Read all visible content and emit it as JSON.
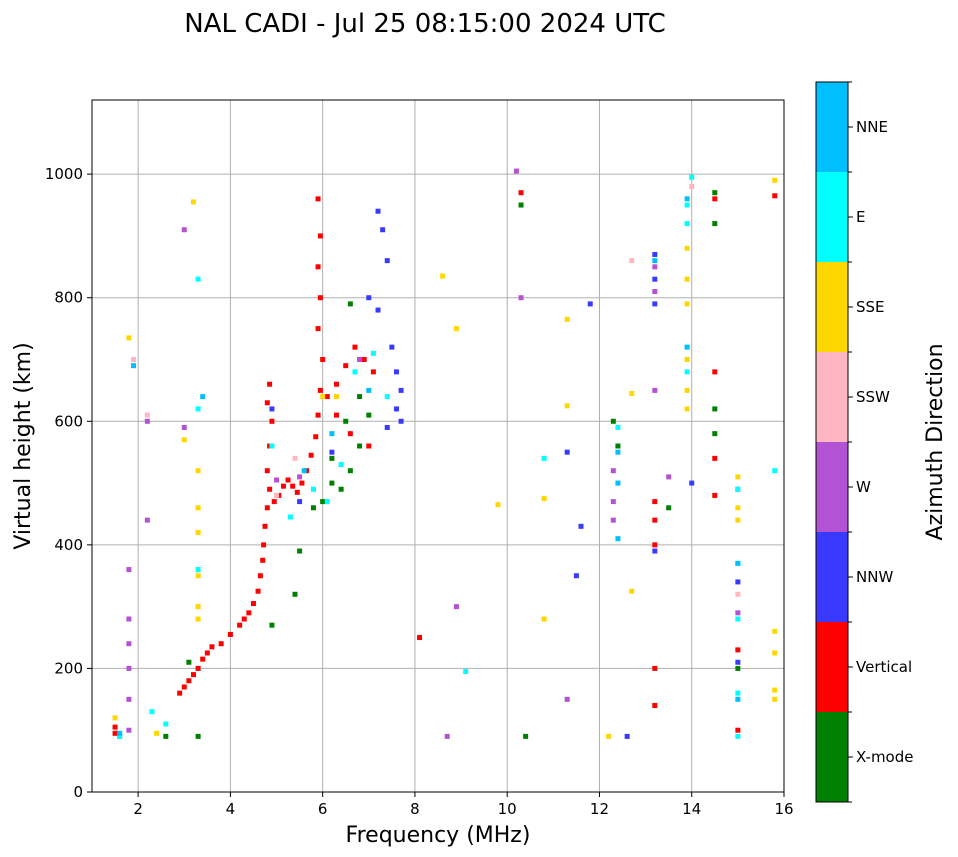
{
  "chart_data": {
    "type": "scatter",
    "title": "NAL CADI - Jul 25 08:15:00 2024 UTC",
    "xlabel": "Frequency (MHz)",
    "ylabel": "Virtual height (km)",
    "xlim": [
      1,
      16
    ],
    "ylim": [
      0,
      1120
    ],
    "xticks": [
      2,
      4,
      6,
      8,
      10,
      12,
      14,
      16
    ],
    "yticks": [
      0,
      200,
      400,
      600,
      800,
      1000
    ],
    "grid": true,
    "colorbar": {
      "label": "Azimuth Direction",
      "categories": [
        {
          "name": "X-mode",
          "color": "#008000"
        },
        {
          "name": "Vertical",
          "color": "#ff0000"
        },
        {
          "name": "NNW",
          "color": "#3a3aff"
        },
        {
          "name": "W",
          "color": "#b452d4"
        },
        {
          "name": "SSW",
          "color": "#ffb6c1"
        },
        {
          "name": "SSE",
          "color": "#ffd700"
        },
        {
          "name": "E",
          "color": "#00ffff"
        },
        {
          "name": "NNE",
          "color": "#00bfff"
        }
      ]
    },
    "series": [
      {
        "name": "Vertical",
        "points": [
          [
            1.5,
            105
          ],
          [
            1.5,
            95
          ],
          [
            2.9,
            160
          ],
          [
            3.0,
            170
          ],
          [
            3.1,
            180
          ],
          [
            3.2,
            190
          ],
          [
            3.3,
            200
          ],
          [
            3.4,
            215
          ],
          [
            3.5,
            225
          ],
          [
            3.6,
            235
          ],
          [
            3.8,
            240
          ],
          [
            4.0,
            255
          ],
          [
            4.2,
            270
          ],
          [
            4.3,
            280
          ],
          [
            4.4,
            290
          ],
          [
            4.5,
            305
          ],
          [
            4.6,
            325
          ],
          [
            4.65,
            350
          ],
          [
            4.7,
            375
          ],
          [
            4.72,
            400
          ],
          [
            4.75,
            430
          ],
          [
            4.8,
            460
          ],
          [
            4.85,
            490
          ],
          [
            4.8,
            520
          ],
          [
            4.85,
            560
          ],
          [
            4.9,
            600
          ],
          [
            4.8,
            630
          ],
          [
            4.85,
            660
          ],
          [
            4.95,
            470
          ],
          [
            5.05,
            480
          ],
          [
            5.15,
            495
          ],
          [
            5.25,
            505
          ],
          [
            5.35,
            495
          ],
          [
            5.45,
            485
          ],
          [
            5.55,
            500
          ],
          [
            5.65,
            520
          ],
          [
            5.75,
            545
          ],
          [
            5.85,
            575
          ],
          [
            5.9,
            610
          ],
          [
            5.95,
            650
          ],
          [
            6.0,
            700
          ],
          [
            5.9,
            750
          ],
          [
            5.95,
            800
          ],
          [
            5.9,
            850
          ],
          [
            5.95,
            900
          ],
          [
            5.9,
            960
          ],
          [
            6.1,
            640
          ],
          [
            6.3,
            660
          ],
          [
            6.5,
            690
          ],
          [
            6.7,
            720
          ],
          [
            6.9,
            700
          ],
          [
            7.1,
            680
          ],
          [
            6.3,
            610
          ],
          [
            6.6,
            580
          ],
          [
            7.0,
            560
          ],
          [
            13.2,
            470
          ],
          [
            13.2,
            440
          ],
          [
            13.2,
            400
          ],
          [
            13.2,
            200
          ],
          [
            13.2,
            140
          ],
          [
            14.5,
            960
          ],
          [
            14.5,
            680
          ],
          [
            14.5,
            540
          ],
          [
            14.5,
            480
          ],
          [
            15.0,
            230
          ],
          [
            15.0,
            100
          ],
          [
            15.8,
            965
          ],
          [
            10.3,
            970
          ],
          [
            8.1,
            250
          ]
        ]
      },
      {
        "name": "X-mode",
        "points": [
          [
            2.6,
            90
          ],
          [
            3.1,
            210
          ],
          [
            3.3,
            90
          ],
          [
            4.9,
            270
          ],
          [
            5.4,
            320
          ],
          [
            5.5,
            390
          ],
          [
            5.8,
            460
          ],
          [
            6.0,
            470
          ],
          [
            6.2,
            500
          ],
          [
            6.4,
            490
          ],
          [
            6.6,
            520
          ],
          [
            6.8,
            560
          ],
          [
            6.2,
            540
          ],
          [
            6.5,
            600
          ],
          [
            6.8,
            640
          ],
          [
            7.0,
            610
          ],
          [
            6.6,
            790
          ],
          [
            10.3,
            950
          ],
          [
            10.4,
            90
          ],
          [
            12.3,
            600
          ],
          [
            12.4,
            560
          ],
          [
            13.5,
            460
          ],
          [
            14.5,
            970
          ],
          [
            14.5,
            920
          ],
          [
            14.5,
            620
          ],
          [
            14.5,
            580
          ],
          [
            15.0,
            200
          ]
        ]
      },
      {
        "name": "NNW",
        "points": [
          [
            1.6,
            90
          ],
          [
            4.9,
            620
          ],
          [
            5.5,
            470
          ],
          [
            6.2,
            550
          ],
          [
            7.0,
            800
          ],
          [
            7.2,
            780
          ],
          [
            7.4,
            860
          ],
          [
            7.3,
            910
          ],
          [
            7.2,
            940
          ],
          [
            7.5,
            720
          ],
          [
            7.6,
            680
          ],
          [
            7.7,
            650
          ],
          [
            7.6,
            620
          ],
          [
            7.4,
            590
          ],
          [
            7.7,
            600
          ],
          [
            11.8,
            790
          ],
          [
            11.6,
            430
          ],
          [
            11.5,
            350
          ],
          [
            11.3,
            550
          ],
          [
            12.6,
            90
          ],
          [
            13.2,
            870
          ],
          [
            13.2,
            830
          ],
          [
            13.2,
            790
          ],
          [
            13.2,
            390
          ],
          [
            14.0,
            500
          ],
          [
            15.0,
            340
          ],
          [
            15.0,
            210
          ]
        ]
      },
      {
        "name": "W",
        "points": [
          [
            1.8,
            100
          ],
          [
            1.8,
            150
          ],
          [
            1.8,
            200
          ],
          [
            1.8,
            240
          ],
          [
            1.8,
            280
          ],
          [
            1.8,
            360
          ],
          [
            2.2,
            440
          ],
          [
            2.2,
            600
          ],
          [
            3.0,
            590
          ],
          [
            3.0,
            910
          ],
          [
            5.0,
            505
          ],
          [
            5.5,
            510
          ],
          [
            6.8,
            700
          ],
          [
            10.3,
            800
          ],
          [
            10.2,
            1005
          ],
          [
            8.9,
            300
          ],
          [
            8.7,
            90
          ],
          [
            11.3,
            150
          ],
          [
            12.3,
            520
          ],
          [
            12.3,
            470
          ],
          [
            12.3,
            440
          ],
          [
            13.2,
            650
          ],
          [
            13.2,
            810
          ],
          [
            13.2,
            850
          ],
          [
            13.5,
            510
          ],
          [
            15.0,
            290
          ],
          [
            15.0,
            490
          ]
        ]
      },
      {
        "name": "SSW",
        "points": [
          [
            1.9,
            700
          ],
          [
            2.2,
            610
          ],
          [
            3.3,
            300
          ],
          [
            5.0,
            480
          ],
          [
            5.4,
            540
          ],
          [
            12.7,
            860
          ],
          [
            14.0,
            980
          ],
          [
            15.0,
            280
          ],
          [
            15.0,
            320
          ]
        ]
      },
      {
        "name": "SSE",
        "points": [
          [
            1.5,
            120
          ],
          [
            1.8,
            735
          ],
          [
            3.3,
            460
          ],
          [
            3.3,
            420
          ],
          [
            3.3,
            300
          ],
          [
            3.3,
            280
          ],
          [
            3.3,
            350
          ],
          [
            3.3,
            520
          ],
          [
            3.2,
            955
          ],
          [
            2.4,
            95
          ],
          [
            3.0,
            570
          ],
          [
            6.0,
            640
          ],
          [
            6.3,
            640
          ],
          [
            8.6,
            835
          ],
          [
            8.9,
            750
          ],
          [
            9.8,
            465
          ],
          [
            10.8,
            475
          ],
          [
            10.8,
            280
          ],
          [
            11.3,
            765
          ],
          [
            11.3,
            625
          ],
          [
            12.2,
            90
          ],
          [
            12.7,
            645
          ],
          [
            12.7,
            325
          ],
          [
            13.9,
            880
          ],
          [
            13.9,
            830
          ],
          [
            13.9,
            790
          ],
          [
            13.9,
            700
          ],
          [
            13.9,
            650
          ],
          [
            13.9,
            620
          ],
          [
            15.0,
            510
          ],
          [
            15.0,
            460
          ],
          [
            15.0,
            440
          ],
          [
            15.8,
            990
          ],
          [
            15.8,
            260
          ],
          [
            15.8,
            225
          ],
          [
            15.8,
            165
          ],
          [
            15.8,
            150
          ]
        ]
      },
      {
        "name": "E",
        "points": [
          [
            1.6,
            90
          ],
          [
            2.3,
            130
          ],
          [
            2.6,
            110
          ],
          [
            3.3,
            830
          ],
          [
            3.3,
            620
          ],
          [
            3.3,
            360
          ],
          [
            4.9,
            560
          ],
          [
            5.3,
            445
          ],
          [
            5.8,
            490
          ],
          [
            6.1,
            470
          ],
          [
            6.4,
            530
          ],
          [
            6.7,
            680
          ],
          [
            7.1,
            710
          ],
          [
            7.4,
            640
          ],
          [
            9.1,
            195
          ],
          [
            10.8,
            540
          ],
          [
            12.4,
            590
          ],
          [
            13.9,
            950
          ],
          [
            13.9,
            920
          ],
          [
            13.9,
            680
          ],
          [
            14.0,
            995
          ],
          [
            15.0,
            490
          ],
          [
            15.0,
            370
          ],
          [
            15.0,
            280
          ],
          [
            15.0,
            160
          ],
          [
            15.0,
            90
          ],
          [
            15.8,
            520
          ]
        ]
      },
      {
        "name": "NNE",
        "points": [
          [
            1.6,
            95
          ],
          [
            1.9,
            690
          ],
          [
            3.4,
            640
          ],
          [
            5.6,
            520
          ],
          [
            6.2,
            580
          ],
          [
            7.0,
            650
          ],
          [
            12.4,
            550
          ],
          [
            12.4,
            500
          ],
          [
            12.4,
            410
          ],
          [
            13.2,
            860
          ],
          [
            13.9,
            960
          ],
          [
            13.9,
            720
          ],
          [
            15.0,
            370
          ],
          [
            15.0,
            150
          ]
        ]
      }
    ]
  }
}
